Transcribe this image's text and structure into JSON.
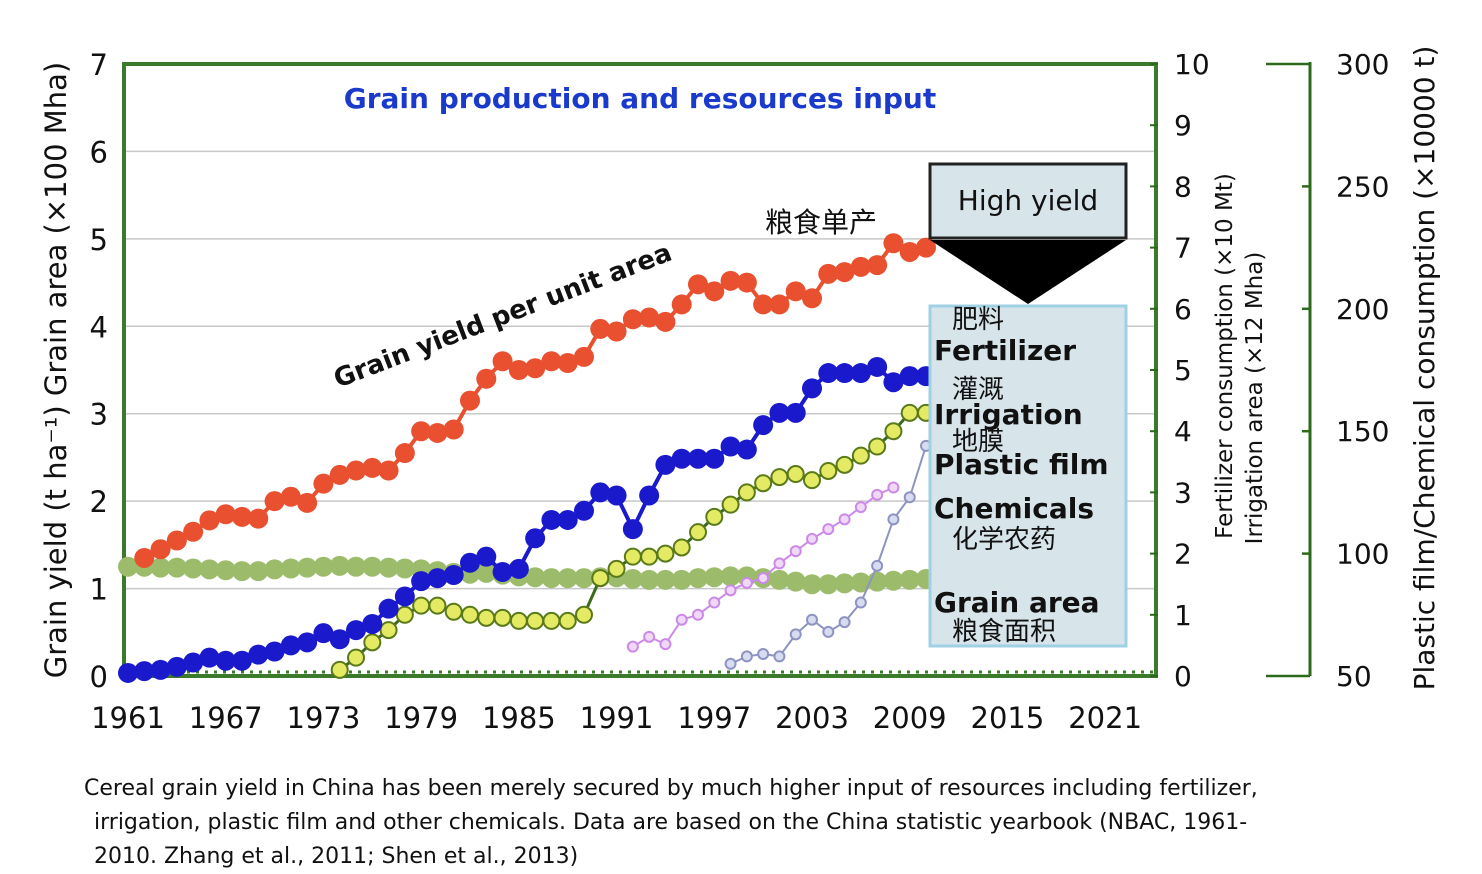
{
  "chart_data": {
    "type": "line",
    "title": "Grain production and resources input",
    "x_ticks": [
      "1961",
      "1967",
      "1973",
      "1979",
      "1985",
      "1991",
      "1997",
      "2003",
      "2009",
      "2015",
      "2021"
    ],
    "xlim": [
      1961,
      2024
    ],
    "left_axis": {
      "label": "Grain yield (t ha⁻¹)  Grain area (×100 Mha)",
      "ylim": [
        0,
        7
      ],
      "ticks": [
        "0",
        "1",
        "2",
        "3",
        "4",
        "5",
        "6",
        "7"
      ]
    },
    "right_axis_1": {
      "label_1": "Fertilizer consumption (×10 Mt)",
      "label_2": "Irrigation area (×12 Mha)",
      "ylim": [
        0,
        10
      ],
      "ticks": [
        "0",
        "1",
        "2",
        "3",
        "4",
        "5",
        "6",
        "7",
        "8",
        "9",
        "10"
      ]
    },
    "right_axis_2": {
      "label": "Plastic film/Chemical consumption (×10000 t)",
      "ylim": [
        50,
        300
      ],
      "ticks": [
        "50",
        "100",
        "150",
        "200",
        "250",
        "300"
      ]
    },
    "colors": {
      "yield": "#e8502f",
      "fertilizer": "#1a1acc",
      "irrigation": "#e4ea64",
      "plastic": "#8e93c2",
      "chemicals": "#cc8ae8",
      "area": "#9cbc6c",
      "frame": "#3a7a2a",
      "title": "#1a3acc"
    },
    "series": [
      {
        "name": "Grain yield per unit area",
        "axis": "left",
        "x": [
          1962,
          1963,
          1964,
          1965,
          1966,
          1967,
          1968,
          1969,
          1970,
          1971,
          1972,
          1973,
          1974,
          1975,
          1976,
          1977,
          1978,
          1979,
          1980,
          1981,
          1982,
          1983,
          1984,
          1985,
          1986,
          1987,
          1988,
          1989,
          1990,
          1991,
          1992,
          1993,
          1994,
          1995,
          1996,
          1997,
          1998,
          1999,
          2000,
          2001,
          2002,
          2003,
          2004,
          2005,
          2006,
          2007,
          2008,
          2009,
          2010
        ],
        "y": [
          1.35,
          1.45,
          1.55,
          1.65,
          1.78,
          1.85,
          1.82,
          1.8,
          2.0,
          2.05,
          1.98,
          2.2,
          2.3,
          2.35,
          2.38,
          2.35,
          2.55,
          2.8,
          2.78,
          2.82,
          3.15,
          3.4,
          3.6,
          3.5,
          3.52,
          3.6,
          3.58,
          3.65,
          3.97,
          3.94,
          4.08,
          4.1,
          4.05,
          4.25,
          4.48,
          4.4,
          4.52,
          4.5,
          4.25,
          4.25,
          4.4,
          4.32,
          4.6,
          4.62,
          4.68,
          4.7,
          4.95,
          4.85,
          4.9
        ]
      },
      {
        "name": "Fertilizer",
        "axis": "right_1",
        "x": [
          1961,
          1962,
          1963,
          1964,
          1965,
          1966,
          1967,
          1968,
          1969,
          1970,
          1971,
          1972,
          1973,
          1974,
          1975,
          1976,
          1977,
          1978,
          1979,
          1980,
          1981,
          1982,
          1983,
          1984,
          1985,
          1986,
          1987,
          1988,
          1989,
          1990,
          1991,
          1992,
          1993,
          1994,
          1995,
          1996,
          1997,
          1998,
          1999,
          2000,
          2001,
          2002,
          2003,
          2004,
          2005,
          2006,
          2007,
          2008,
          2009,
          2010
        ],
        "y": [
          0.05,
          0.08,
          0.1,
          0.15,
          0.22,
          0.3,
          0.25,
          0.25,
          0.35,
          0.4,
          0.5,
          0.55,
          0.7,
          0.6,
          0.75,
          0.85,
          1.1,
          1.3,
          1.55,
          1.6,
          1.65,
          1.85,
          1.95,
          1.7,
          1.75,
          2.25,
          2.55,
          2.55,
          2.7,
          3.0,
          2.95,
          2.4,
          2.95,
          3.45,
          3.55,
          3.55,
          3.55,
          3.75,
          3.7,
          4.1,
          4.3,
          4.3,
          4.7,
          4.95,
          4.95,
          4.95,
          5.05,
          4.8,
          4.9,
          4.9
        ]
      },
      {
        "name": "Irrigation",
        "axis": "right_1",
        "x": [
          1974,
          1975,
          1976,
          1977,
          1978,
          1979,
          1980,
          1981,
          1982,
          1983,
          1984,
          1985,
          1986,
          1987,
          1988,
          1989,
          1990,
          1991,
          1992,
          1993,
          1994,
          1995,
          1996,
          1997,
          1998,
          1999,
          2000,
          2001,
          2002,
          2003,
          2004,
          2005,
          2006,
          2007,
          2008,
          2009,
          2010
        ],
        "y": [
          0.1,
          0.3,
          0.55,
          0.75,
          1.0,
          1.15,
          1.15,
          1.05,
          1.0,
          0.95,
          0.95,
          0.9,
          0.9,
          0.9,
          0.9,
          1.0,
          1.6,
          1.75,
          1.95,
          1.95,
          2.0,
          2.1,
          2.35,
          2.6,
          2.8,
          3.0,
          3.15,
          3.25,
          3.3,
          3.2,
          3.35,
          3.45,
          3.6,
          3.75,
          4.0,
          4.3,
          4.3
        ]
      },
      {
        "name": "Plastic film",
        "axis": "right_2",
        "x": [
          1998,
          1999,
          2000,
          2001,
          2002,
          2003,
          2004,
          2005,
          2006,
          2007,
          2008,
          2009,
          2010
        ],
        "y": [
          55,
          58,
          59,
          58,
          67,
          73,
          68,
          72,
          80,
          95,
          114,
          123,
          144
        ]
      },
      {
        "name": "Chemicals",
        "axis": "right_2",
        "x": [
          1992,
          1993,
          1994,
          1995,
          1996,
          1997,
          1998,
          1999,
          2000,
          2001,
          2002,
          2003,
          2004,
          2005,
          2006,
          2007,
          2008
        ],
        "y": [
          62,
          66,
          63,
          73,
          75,
          80,
          85,
          88,
          90,
          96,
          101,
          106,
          110,
          114,
          119,
          124,
          127
        ]
      },
      {
        "name": "Grain area",
        "axis": "left",
        "x": [
          1961,
          1962,
          1963,
          1964,
          1965,
          1966,
          1967,
          1968,
          1969,
          1970,
          1971,
          1972,
          1973,
          1974,
          1975,
          1976,
          1977,
          1978,
          1979,
          1980,
          1981,
          1982,
          1983,
          1984,
          1985,
          1986,
          1987,
          1988,
          1989,
          1990,
          1991,
          1992,
          1993,
          1994,
          1995,
          1996,
          1997,
          1998,
          1999,
          2000,
          2001,
          2002,
          2003,
          2004,
          2005,
          2006,
          2007,
          2008,
          2009,
          2010
        ],
        "y": [
          1.25,
          1.25,
          1.24,
          1.24,
          1.23,
          1.22,
          1.21,
          1.2,
          1.2,
          1.22,
          1.23,
          1.24,
          1.25,
          1.26,
          1.25,
          1.25,
          1.24,
          1.23,
          1.22,
          1.2,
          1.18,
          1.17,
          1.18,
          1.16,
          1.14,
          1.13,
          1.12,
          1.12,
          1.12,
          1.13,
          1.13,
          1.11,
          1.1,
          1.1,
          1.1,
          1.12,
          1.13,
          1.14,
          1.14,
          1.12,
          1.1,
          1.08,
          1.05,
          1.05,
          1.06,
          1.07,
          1.08,
          1.09,
          1.1,
          1.11
        ]
      }
    ],
    "annotations": {
      "yield_en": "Grain yield per unit area",
      "yield_zh": "粮食单产",
      "high_yield": "High yield",
      "fert_zh": "肥料",
      "fert_en": "Fertilizer",
      "irr_zh": "灌溉",
      "irr_en": "Irrigation",
      "film_zh": "地膜",
      "film_en": "Plastic film",
      "chem_en": "Chemicals",
      "chem_zh": "化学农药",
      "area_en": "Grain area",
      "area_zh": "粮食面积"
    }
  },
  "caption": {
    "line1": "Cereal grain yield in China has been merely secured by much higher input of resources including fertilizer,",
    "line2": "irrigation, plastic film and other chemicals. Data are based on the China statistic yearbook (NBAC, 1961-",
    "line3": "2010.    Zhang et al., 2011;  Shen et al., 2013)"
  }
}
